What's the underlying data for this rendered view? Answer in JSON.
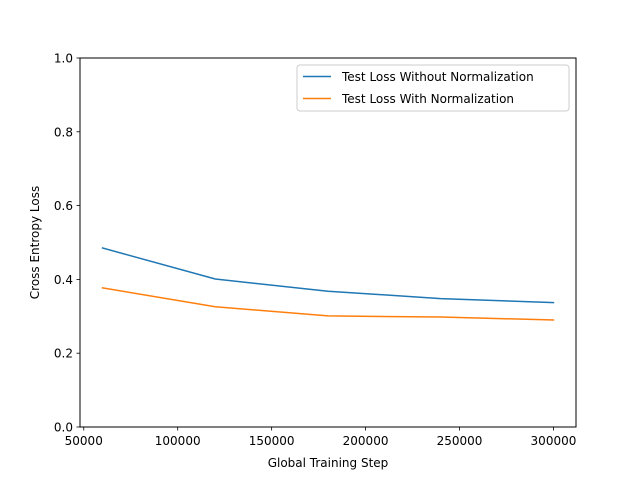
{
  "chart_data": {
    "type": "line",
    "xlabel": "Global Training Step",
    "ylabel": "Cross Entropy Loss",
    "xlim": [
      48000,
      312000
    ],
    "ylim": [
      0.0,
      1.0
    ],
    "xticks": [
      50000,
      100000,
      150000,
      200000,
      250000,
      300000
    ],
    "yticks": [
      0.0,
      0.2,
      0.4,
      0.6,
      0.8,
      1.0
    ],
    "xtick_labels": [
      "50000",
      "100000",
      "150000",
      "200000",
      "250000",
      "300000"
    ],
    "ytick_labels": [
      "0.0",
      "0.2",
      "0.4",
      "0.6",
      "0.8",
      "1.0"
    ],
    "grid": false,
    "legend_position": "top-right",
    "x": [
      60000,
      120000,
      180000,
      240000,
      300000
    ],
    "series": [
      {
        "name": "Test Loss Without Normalization",
        "color": "#1f77b4",
        "values": [
          0.485,
          0.401,
          0.368,
          0.348,
          0.337
        ]
      },
      {
        "name": "Test Loss With Normalization",
        "color": "#ff7f0e",
        "values": [
          0.377,
          0.326,
          0.301,
          0.298,
          0.29
        ]
      }
    ]
  }
}
